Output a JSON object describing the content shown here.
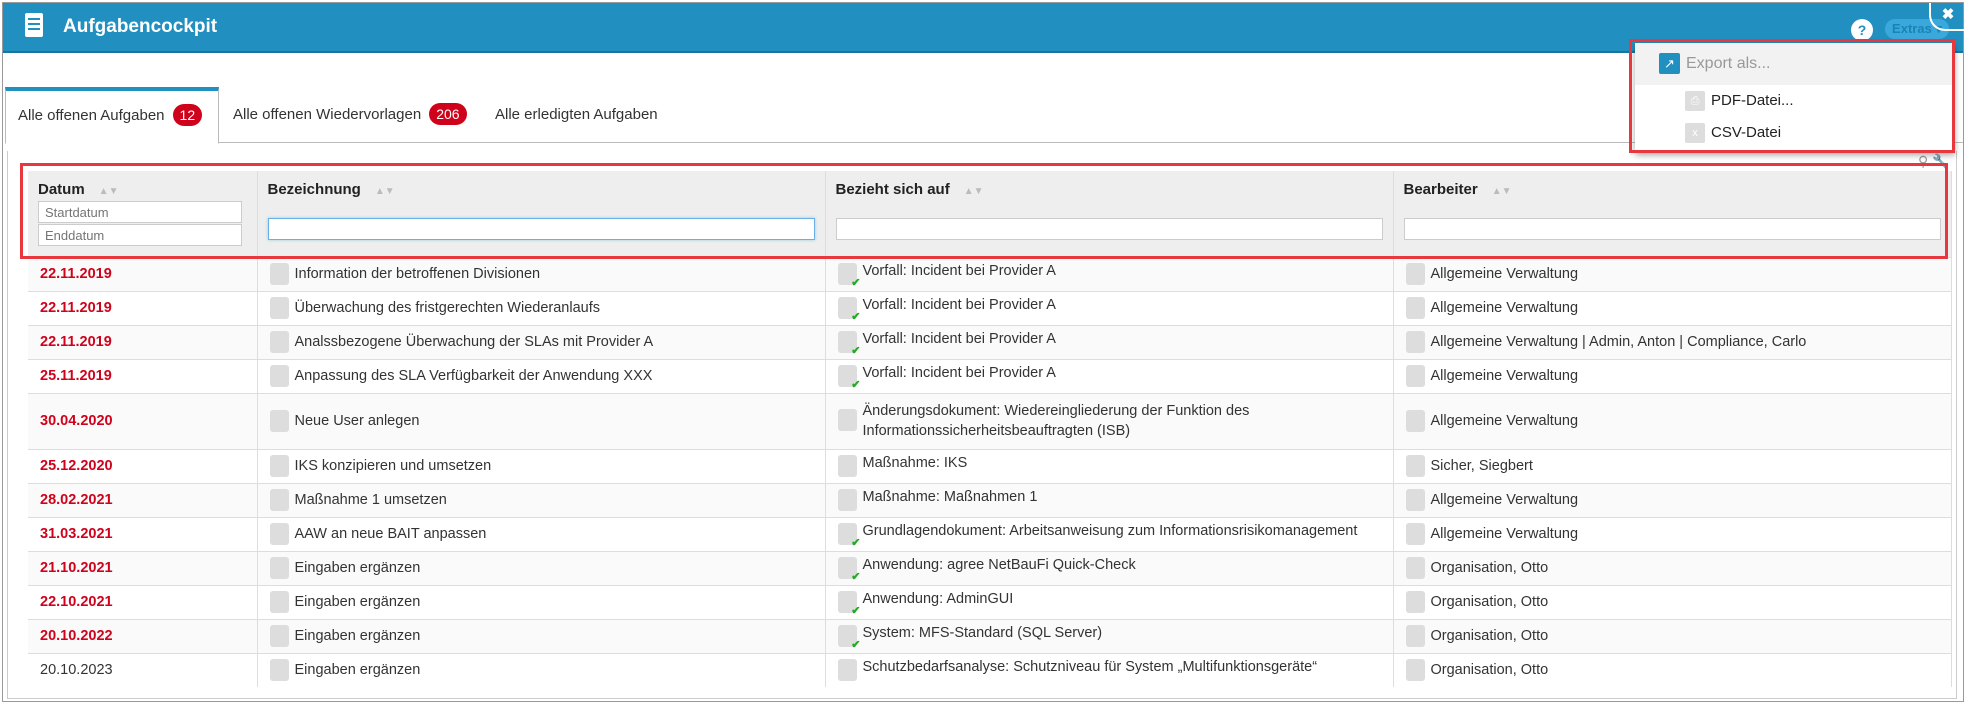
{
  "window": {
    "title": "Aufgabencockpit",
    "help_label": "?",
    "extras_label": "Extras ▾",
    "close_label": "✖"
  },
  "tabs": [
    {
      "label": "Alle offenen Aufgaben",
      "badge": "12"
    },
    {
      "label": "Alle offenen Wiedervorlagen",
      "badge": "206"
    },
    {
      "label": "Alle erledigten Aufgaben"
    }
  ],
  "menu": {
    "header": "Export als...",
    "items": [
      "PDF-Datei...",
      "CSV-Datei"
    ]
  },
  "table": {
    "columns": [
      "Datum",
      "Bezeichnung",
      "Bezieht sich auf",
      "Bearbeiter"
    ],
    "filters": {
      "start_placeholder": "Startdatum",
      "end_placeholder": "Enddatum"
    },
    "rows": [
      {
        "datum": "22.11.2019",
        "bezeichnung": "Information der betroffenen Divisionen",
        "bezug": "Vorfall: Incident bei Provider A",
        "bearbeiter": "Allgemeine Verwaltung",
        "overdue": true
      },
      {
        "datum": "22.11.2019",
        "bezeichnung": "Überwachung des fristgerechten Wiederanlaufs",
        "bezug": "Vorfall: Incident bei Provider A",
        "bearbeiter": "Allgemeine Verwaltung",
        "overdue": true
      },
      {
        "datum": "22.11.2019",
        "bezeichnung": "Analssbezogene Überwachung der SLAs mit Provider A",
        "bezug": "Vorfall: Incident bei Provider A",
        "bearbeiter": "Allgemeine Verwaltung | Admin, Anton | Compliance, Carlo",
        "overdue": true
      },
      {
        "datum": "25.11.2019",
        "bezeichnung": "Anpassung des SLA Verfügbarkeit der Anwendung XXX",
        "bezug": "Vorfall: Incident bei Provider A",
        "bearbeiter": "Allgemeine Verwaltung",
        "overdue": true
      },
      {
        "datum": "30.04.2020",
        "bezeichnung": "Neue User anlegen",
        "bezug": "Änderungsdokument: Wiedereingliederung der Funktion des Informationssicherheitsbeauftragten (ISB)",
        "bearbeiter": "Allgemeine Verwaltung",
        "overdue": true
      },
      {
        "datum": "25.12.2020",
        "bezeichnung": "IKS konzipieren und umsetzen",
        "bezug": "Maßnahme: IKS",
        "bearbeiter": "Sicher, Siegbert",
        "overdue": true
      },
      {
        "datum": "28.02.2021",
        "bezeichnung": "Maßnahme 1 umsetzen",
        "bezug": "Maßnahme: Maßnahmen 1",
        "bearbeiter": "Allgemeine Verwaltung",
        "overdue": true
      },
      {
        "datum": "31.03.2021",
        "bezeichnung": "AAW an neue BAIT anpassen",
        "bezug": "Grundlagendokument: Arbeitsanweisung zum Informationsrisikomanagement",
        "bearbeiter": "Allgemeine Verwaltung",
        "overdue": true
      },
      {
        "datum": "21.10.2021",
        "bezeichnung": "Eingaben ergänzen",
        "bezug": "Anwendung: agree NetBauFi Quick-Check",
        "bearbeiter": "Organisation, Otto",
        "overdue": true
      },
      {
        "datum": "22.10.2021",
        "bezeichnung": "Eingaben ergänzen",
        "bezug": "Anwendung: AdminGUI",
        "bearbeiter": "Organisation, Otto",
        "overdue": true
      },
      {
        "datum": "20.10.2022",
        "bezeichnung": "Eingaben ergänzen",
        "bezug": "System: MFS-Standard (SQL Server)",
        "bearbeiter": "Organisation, Otto",
        "overdue": true
      },
      {
        "datum": "20.10.2023",
        "bezeichnung": "Eingaben ergänzen",
        "bezug": "Schutzbedarfsanalyse: Schutzniveau für System „Multifunktionsgeräte“",
        "bearbeiter": "Organisation, Otto",
        "overdue": false
      }
    ]
  },
  "colors": {
    "header": "#2190c0",
    "overdue": "#d0021b",
    "highlight": "#e8383d",
    "badge": "#d0021b"
  }
}
